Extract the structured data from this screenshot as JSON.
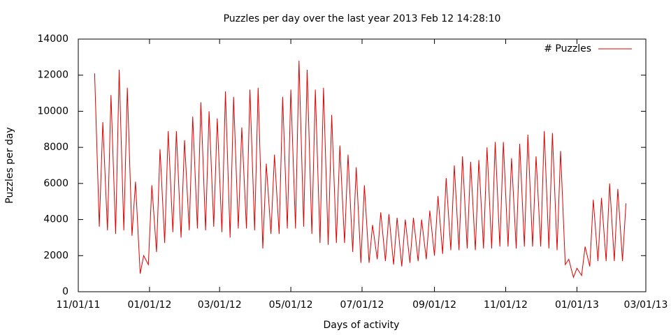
{
  "chart_data": {
    "type": "line",
    "title": "Puzzles per day over the last year  2013 Feb 12  14:28:10",
    "xlabel": "Days of activity",
    "ylabel": "Puzzles per day",
    "legend": "top-right",
    "x": [
      "2011-11-15",
      "2011-11-19",
      "2011-11-22",
      "2011-11-26",
      "2011-11-29",
      "2011-12-03",
      "2011-12-06",
      "2011-12-10",
      "2011-12-13",
      "2011-12-17",
      "2011-12-20",
      "2011-12-24",
      "2011-12-27",
      "2011-12-31",
      "2012-01-03",
      "2012-01-07",
      "2012-01-10",
      "2012-01-14",
      "2012-01-17",
      "2012-01-21",
      "2012-01-24",
      "2012-01-28",
      "2012-01-31",
      "2012-02-04",
      "2012-02-07",
      "2012-02-11",
      "2012-02-14",
      "2012-02-18",
      "2012-02-21",
      "2012-02-25",
      "2012-02-28",
      "2012-03-03",
      "2012-03-06",
      "2012-03-10",
      "2012-03-13",
      "2012-03-17",
      "2012-03-20",
      "2012-03-24",
      "2012-03-27",
      "2012-03-31",
      "2012-04-03",
      "2012-04-07",
      "2012-04-10",
      "2012-04-14",
      "2012-04-17",
      "2012-04-21",
      "2012-04-24",
      "2012-04-28",
      "2012-05-01",
      "2012-05-05",
      "2012-05-08",
      "2012-05-12",
      "2012-05-15",
      "2012-05-19",
      "2012-05-22",
      "2012-05-26",
      "2012-05-29",
      "2012-06-02",
      "2012-06-05",
      "2012-06-09",
      "2012-06-12",
      "2012-06-16",
      "2012-06-19",
      "2012-06-23",
      "2012-06-26",
      "2012-06-30",
      "2012-07-03",
      "2012-07-07",
      "2012-07-10",
      "2012-07-14",
      "2012-07-17",
      "2012-07-21",
      "2012-07-24",
      "2012-07-28",
      "2012-07-31",
      "2012-08-04",
      "2012-08-07",
      "2012-08-11",
      "2012-08-14",
      "2012-08-18",
      "2012-08-21",
      "2012-08-25",
      "2012-08-28",
      "2012-09-01",
      "2012-09-04",
      "2012-09-08",
      "2012-09-11",
      "2012-09-15",
      "2012-09-18",
      "2012-09-22",
      "2012-09-25",
      "2012-09-29",
      "2012-10-02",
      "2012-10-06",
      "2012-10-09",
      "2012-10-13",
      "2012-10-16",
      "2012-10-20",
      "2012-10-23",
      "2012-10-27",
      "2012-10-30",
      "2012-11-03",
      "2012-11-06",
      "2012-11-10",
      "2012-11-13",
      "2012-11-17",
      "2012-11-20",
      "2012-11-24",
      "2012-11-27",
      "2012-12-01",
      "2012-12-04",
      "2012-12-08",
      "2012-12-11",
      "2012-12-15",
      "2012-12-18",
      "2012-12-22",
      "2012-12-25",
      "2012-12-29",
      "2013-01-01",
      "2013-01-05",
      "2013-01-08",
      "2013-01-12",
      "2013-01-15",
      "2013-01-19",
      "2013-01-22",
      "2013-01-26",
      "2013-01-29",
      "2013-02-02",
      "2013-02-05",
      "2013-02-09",
      "2013-02-12"
    ],
    "series": [
      {
        "name": "# Puzzles",
        "color": "#e00000",
        "values": [
          12100,
          3600,
          9400,
          3400,
          10900,
          3200,
          12300,
          3400,
          11300,
          3100,
          6100,
          1000,
          2000,
          1500,
          5900,
          2200,
          7900,
          2700,
          8900,
          3300,
          8900,
          3000,
          8400,
          3400,
          9700,
          3500,
          10500,
          3400,
          10000,
          3600,
          9600,
          3300,
          11100,
          3000,
          10800,
          3500,
          9100,
          3500,
          11200,
          3400,
          11300,
          2400,
          7100,
          3200,
          7600,
          3200,
          10800,
          3500,
          11200,
          3500,
          12800,
          3600,
          12300,
          3200,
          11200,
          2700,
          11300,
          2600,
          9800,
          2700,
          8100,
          2700,
          7600,
          2200,
          6900,
          1600,
          5900,
          1600,
          3700,
          1800,
          4400,
          1700,
          4300,
          1500,
          4100,
          1400,
          4000,
          1600,
          4100,
          1700,
          4000,
          1800,
          4500,
          2000,
          5300,
          2100,
          6300,
          2300,
          7000,
          2300,
          7500,
          2400,
          7200,
          2300,
          7300,
          2400,
          8000,
          2400,
          8300,
          2500,
          8300,
          2500,
          7400,
          2400,
          8200,
          2500,
          8700,
          2500,
          7500,
          2500,
          8900,
          2400,
          8800,
          2300,
          7800,
          1500,
          1800,
          800,
          1300,
          900,
          2500,
          1400,
          5100,
          1700,
          5200,
          1700,
          6000,
          1700,
          5700,
          1700,
          4900
        ]
      }
    ],
    "xlim": [
      "2011-11-01",
      "2013-03-01"
    ],
    "xticks": [
      {
        "value": "2011-11-01",
        "label": "11/01/11"
      },
      {
        "value": "2012-01-01",
        "label": "01/01/12"
      },
      {
        "value": "2012-03-01",
        "label": "03/01/12"
      },
      {
        "value": "2012-05-01",
        "label": "05/01/12"
      },
      {
        "value": "2012-07-01",
        "label": "07/01/12"
      },
      {
        "value": "2012-09-01",
        "label": "09/01/12"
      },
      {
        "value": "2012-11-01",
        "label": "11/01/12"
      },
      {
        "value": "2013-01-01",
        "label": "01/01/13"
      },
      {
        "value": "2013-03-01",
        "label": "03/01/13"
      }
    ],
    "ylim": [
      0,
      14000
    ],
    "yticks": [
      0,
      2000,
      4000,
      6000,
      8000,
      10000,
      12000,
      14000
    ]
  }
}
